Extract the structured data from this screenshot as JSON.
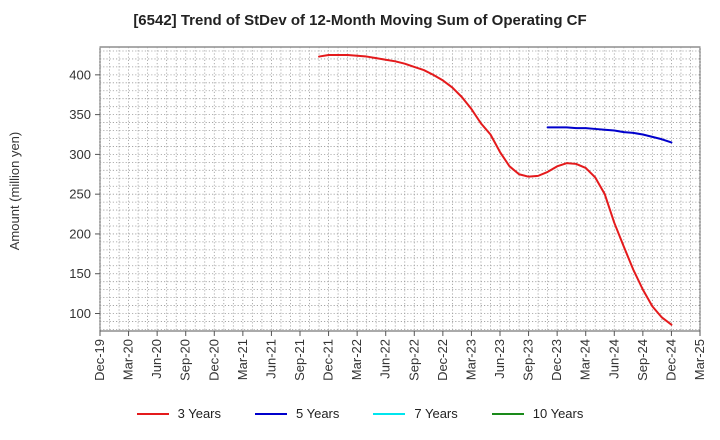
{
  "chart_data": {
    "type": "line",
    "title": "[6542]  Trend of StDev of 12-Month Moving Sum of Operating CF",
    "ylabel": "Amount (million yen)",
    "xlabel": "",
    "ylim": [
      78,
      435
    ],
    "yticks": [
      100,
      150,
      200,
      250,
      300,
      350,
      400
    ],
    "x_categories": [
      "Dec-19",
      "Mar-20",
      "Jun-20",
      "Sep-20",
      "Dec-20",
      "Mar-21",
      "Jun-21",
      "Sep-21",
      "Dec-21",
      "Mar-22",
      "Jun-22",
      "Sep-22",
      "Dec-22",
      "Mar-23",
      "Jun-23",
      "Sep-23",
      "Dec-23",
      "Mar-24",
      "Jun-24",
      "Sep-24",
      "Dec-24",
      "Mar-25"
    ],
    "grid": true,
    "legend_position": "bottom",
    "series": [
      {
        "name": "3 Years",
        "color": "#e41a1c",
        "points": [
          [
            "Nov-21",
            423
          ],
          [
            "Dec-21",
            425
          ],
          [
            "Jan-22",
            425
          ],
          [
            "Feb-22",
            425
          ],
          [
            "Mar-22",
            424
          ],
          [
            "Apr-22",
            423
          ],
          [
            "May-22",
            421
          ],
          [
            "Jun-22",
            419
          ],
          [
            "Jul-22",
            417
          ],
          [
            "Aug-22",
            414
          ],
          [
            "Sep-22",
            410
          ],
          [
            "Oct-22",
            406
          ],
          [
            "Nov-22",
            400
          ],
          [
            "Dec-22",
            393
          ],
          [
            "Jan-23",
            384
          ],
          [
            "Feb-23",
            372
          ],
          [
            "Mar-23",
            357
          ],
          [
            "Apr-23",
            339
          ],
          [
            "May-23",
            325
          ],
          [
            "Jun-23",
            303
          ],
          [
            "Jul-23",
            285
          ],
          [
            "Aug-23",
            275
          ],
          [
            "Sep-23",
            272
          ],
          [
            "Oct-23",
            273
          ],
          [
            "Nov-23",
            278
          ],
          [
            "Dec-23",
            285
          ],
          [
            "Jan-24",
            289
          ],
          [
            "Feb-24",
            288
          ],
          [
            "Mar-24",
            283
          ],
          [
            "Apr-24",
            271
          ],
          [
            "May-24",
            250
          ],
          [
            "Jun-24",
            214
          ],
          [
            "Jul-24",
            184
          ],
          [
            "Aug-24",
            155
          ],
          [
            "Sep-24",
            130
          ],
          [
            "Oct-24",
            109
          ],
          [
            "Nov-24",
            95
          ],
          [
            "Dec-24",
            86
          ]
        ]
      },
      {
        "name": "5 Years",
        "color": "#0000cc",
        "points": [
          [
            "Nov-23",
            334
          ],
          [
            "Dec-23",
            334
          ],
          [
            "Jan-24",
            334
          ],
          [
            "Feb-24",
            333
          ],
          [
            "Mar-24",
            333
          ],
          [
            "Apr-24",
            332
          ],
          [
            "May-24",
            331
          ],
          [
            "Jun-24",
            330
          ],
          [
            "Jul-24",
            328
          ],
          [
            "Aug-24",
            327
          ],
          [
            "Sep-24",
            325
          ],
          [
            "Oct-24",
            322
          ],
          [
            "Nov-24",
            319
          ],
          [
            "Dec-24",
            315
          ]
        ]
      },
      {
        "name": "7 Years",
        "color": "#00e5ee",
        "points": []
      },
      {
        "name": "10 Years",
        "color": "#1a8a1a",
        "points": []
      }
    ]
  }
}
